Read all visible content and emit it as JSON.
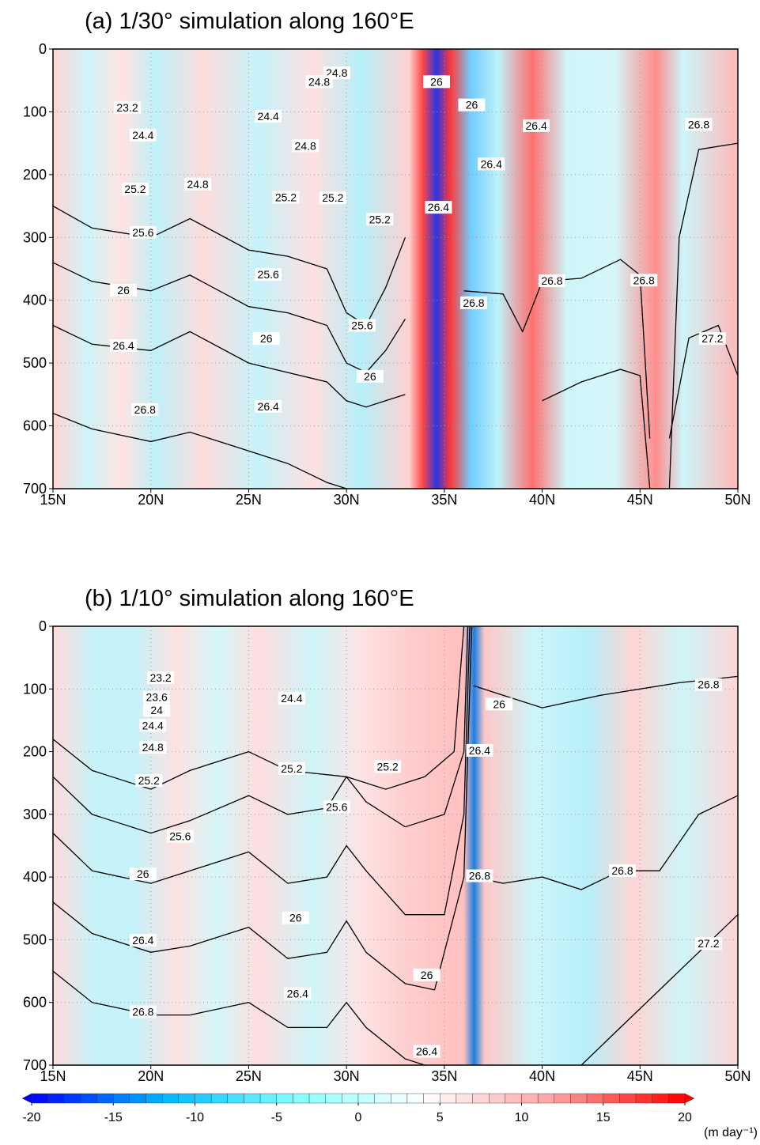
{
  "chart_data": [
    {
      "type": "contour",
      "title": "(a)   1/30° simulation along 160°E",
      "xlim": [
        15,
        50
      ],
      "ylim": [
        700,
        0
      ],
      "xticks": [
        {
          "value": 15,
          "label": "15N"
        },
        {
          "value": 20,
          "label": "20N"
        },
        {
          "value": 25,
          "label": "25N"
        },
        {
          "value": 30,
          "label": "30N"
        },
        {
          "value": 35,
          "label": "35N"
        },
        {
          "value": 40,
          "label": "40N"
        },
        {
          "value": 45,
          "label": "45N"
        },
        {
          "value": 50,
          "label": "50N"
        }
      ],
      "yticks": [
        0,
        100,
        200,
        300,
        400,
        500,
        600,
        700
      ],
      "grid": true,
      "contour_color": "#000000",
      "contours": [
        {
          "x": [
            15,
            17,
            20,
            22,
            25,
            27,
            29,
            30,
            31,
            32,
            33
          ],
          "y": [
            250,
            285,
            300,
            270,
            320,
            330,
            350,
            420,
            440,
            380,
            300
          ]
        },
        {
          "x": [
            15,
            17,
            20,
            22,
            25,
            27,
            29,
            30,
            31,
            32,
            33
          ],
          "y": [
            340,
            370,
            385,
            360,
            410,
            420,
            440,
            500,
            515,
            480,
            430
          ]
        },
        {
          "x": [
            15,
            17,
            20,
            22,
            25,
            27,
            29,
            30,
            31,
            32,
            33
          ],
          "y": [
            440,
            470,
            480,
            450,
            500,
            515,
            530,
            560,
            570,
            560,
            550
          ]
        },
        {
          "x": [
            15,
            17,
            20,
            22,
            25,
            27,
            29,
            30
          ],
          "y": [
            580,
            605,
            625,
            610,
            640,
            660,
            690,
            700
          ]
        },
        {
          "x": [
            36,
            38,
            39,
            40,
            42,
            44,
            45,
            45.5,
            null,
            46.5,
            47,
            48,
            50
          ],
          "y": [
            385,
            390,
            450,
            370,
            365,
            335,
            360,
            620,
            null,
            700,
            300,
            160,
            150
          ]
        },
        {
          "x": [
            40,
            42,
            44,
            45,
            45.5,
            null,
            46.5,
            47.5,
            49,
            50
          ],
          "y": [
            560,
            530,
            510,
            520,
            700,
            null,
            620,
            460,
            440,
            520
          ]
        }
      ],
      "contour_labels": [
        {
          "level": 24.8,
          "x": 29.5,
          "y": 38
        },
        {
          "level": 24.8,
          "x": 28.6,
          "y": 52
        },
        {
          "level": 26,
          "x": 34.6,
          "y": 52
        },
        {
          "level": 23.2,
          "x": 18.8,
          "y": 93
        },
        {
          "level": 26,
          "x": 36.4,
          "y": 89
        },
        {
          "level": 24.4,
          "x": 26,
          "y": 107
        },
        {
          "level": 26.4,
          "x": 39.7,
          "y": 122
        },
        {
          "level": 26.8,
          "x": 48,
          "y": 120
        },
        {
          "level": 24.4,
          "x": 19.6,
          "y": 137
        },
        {
          "level": 24.8,
          "x": 27.9,
          "y": 154
        },
        {
          "level": 26.4,
          "x": 37.4,
          "y": 183
        },
        {
          "level": 25.2,
          "x": 19.2,
          "y": 223
        },
        {
          "level": 24.8,
          "x": 22.4,
          "y": 215
        },
        {
          "level": 25.2,
          "x": 26.9,
          "y": 236
        },
        {
          "level": 25.2,
          "x": 29.3,
          "y": 237
        },
        {
          "level": 26.4,
          "x": 34.7,
          "y": 252
        },
        {
          "level": 25.2,
          "x": 31.7,
          "y": 271
        },
        {
          "level": 25.6,
          "x": 19.6,
          "y": 292
        },
        {
          "level": 25.6,
          "x": 26,
          "y": 359
        },
        {
          "level": 26.8,
          "x": 40.5,
          "y": 369
        },
        {
          "level": 26.8,
          "x": 45.2,
          "y": 368
        },
        {
          "level": 26,
          "x": 18.6,
          "y": 384
        },
        {
          "level": 26.8,
          "x": 36.5,
          "y": 404
        },
        {
          "level": 25.6,
          "x": 30.8,
          "y": 440
        },
        {
          "level": 26,
          "x": 25.9,
          "y": 461
        },
        {
          "level": 26.4,
          "x": 18.6,
          "y": 472
        },
        {
          "level": 27.2,
          "x": 48.7,
          "y": 461
        },
        {
          "level": 26,
          "x": 31.2,
          "y": 521
        },
        {
          "level": 26.4,
          "x": 26,
          "y": 569
        },
        {
          "level": 26.8,
          "x": 19.7,
          "y": 574
        }
      ]
    },
    {
      "type": "contour",
      "title": "(b)   1/10° simulation along 160°E",
      "xlim": [
        15,
        50
      ],
      "ylim": [
        700,
        0
      ],
      "xticks": [
        {
          "value": 15,
          "label": "15N"
        },
        {
          "value": 20,
          "label": "20N"
        },
        {
          "value": 25,
          "label": "25N"
        },
        {
          "value": 30,
          "label": "30N"
        },
        {
          "value": 35,
          "label": "35N"
        },
        {
          "value": 40,
          "label": "40N"
        },
        {
          "value": 45,
          "label": "45N"
        },
        {
          "value": 50,
          "label": "50N"
        }
      ],
      "yticks": [
        0,
        100,
        200,
        300,
        400,
        500,
        600,
        700
      ],
      "grid": true,
      "contour_color": "#000000",
      "contours": [
        {
          "x": [
            15,
            17,
            20,
            22,
            25,
            27,
            30,
            32,
            34,
            35.5,
            36
          ],
          "y": [
            180,
            230,
            260,
            230,
            200,
            230,
            240,
            260,
            240,
            200,
            0
          ]
        },
        {
          "x": [
            15,
            17,
            20,
            22,
            25,
            27,
            29,
            30,
            31,
            33,
            35,
            36,
            36.2
          ],
          "y": [
            240,
            300,
            330,
            310,
            270,
            300,
            290,
            240,
            280,
            320,
            300,
            200,
            0
          ]
        },
        {
          "x": [
            15,
            17,
            20,
            22,
            25,
            27,
            29,
            30,
            31,
            33,
            35,
            36,
            36.3
          ],
          "y": [
            330,
            390,
            410,
            390,
            360,
            410,
            400,
            350,
            390,
            460,
            460,
            300,
            0
          ]
        },
        {
          "x": [
            15,
            17,
            20,
            22,
            25,
            27,
            29,
            30,
            31,
            33,
            34.5,
            36,
            36.4
          ],
          "y": [
            440,
            490,
            520,
            510,
            480,
            530,
            520,
            470,
            520,
            570,
            580,
            400,
            0
          ]
        },
        {
          "x": [
            15,
            17,
            20,
            22,
            25,
            27,
            29,
            30,
            31,
            33,
            34
          ],
          "y": [
            550,
            600,
            620,
            620,
            600,
            640,
            640,
            600,
            640,
            690,
            700
          ]
        },
        {
          "x": [
            36.5,
            38,
            40,
            43,
            45,
            47,
            50
          ],
          "y": [
            95,
            110,
            130,
            110,
            100,
            90,
            80
          ]
        },
        {
          "x": [
            36.5,
            38,
            40,
            42,
            44,
            46,
            48,
            50
          ],
          "y": [
            400,
            410,
            400,
            420,
            390,
            390,
            300,
            270
          ]
        },
        {
          "x": [
            42,
            44,
            46,
            48,
            50
          ],
          "y": [
            700,
            640,
            580,
            520,
            460
          ]
        }
      ],
      "contour_labels": [
        {
          "level": 23.2,
          "x": 20.5,
          "y": 82
        },
        {
          "level": 23.6,
          "x": 20.3,
          "y": 113
        },
        {
          "level": 24,
          "x": 20.3,
          "y": 134
        },
        {
          "level": 24.4,
          "x": 20.1,
          "y": 158
        },
        {
          "level": 24.4,
          "x": 27.2,
          "y": 115
        },
        {
          "level": 26,
          "x": 37.8,
          "y": 124
        },
        {
          "level": 26.8,
          "x": 48.5,
          "y": 93
        },
        {
          "level": 24.8,
          "x": 20.1,
          "y": 193
        },
        {
          "level": 26.4,
          "x": 36.8,
          "y": 198
        },
        {
          "level": 25.2,
          "x": 27.2,
          "y": 227
        },
        {
          "level": 25.2,
          "x": 32.1,
          "y": 224
        },
        {
          "level": 25.2,
          "x": 19.9,
          "y": 246
        },
        {
          "level": 25.6,
          "x": 29.5,
          "y": 288
        },
        {
          "level": 25.6,
          "x": 21.5,
          "y": 335
        },
        {
          "level": 26,
          "x": 19.6,
          "y": 395
        },
        {
          "level": 26.8,
          "x": 36.8,
          "y": 398
        },
        {
          "level": 26.8,
          "x": 44.1,
          "y": 390
        },
        {
          "level": 26,
          "x": 27.4,
          "y": 465
        },
        {
          "level": 26.4,
          "x": 19.6,
          "y": 501
        },
        {
          "level": 27.2,
          "x": 48.5,
          "y": 506
        },
        {
          "level": 26,
          "x": 34.1,
          "y": 556
        },
        {
          "level": 26.4,
          "x": 27.5,
          "y": 586
        },
        {
          "level": 26.8,
          "x": 19.6,
          "y": 615
        },
        {
          "level": 26.4,
          "x": 34.1,
          "y": 678
        }
      ]
    }
  ],
  "colorbar": {
    "lim": [
      -20,
      20
    ],
    "step": 1,
    "ticks": [
      -20,
      -15,
      -10,
      -5,
      0,
      5,
      10,
      15,
      20
    ],
    "colors": [
      "#0000ff",
      "#00b4ff",
      "#80ffff",
      "#ffffff",
      "#ffa0a0",
      "#ff0000"
    ],
    "unit": "(m day⁻¹)"
  }
}
